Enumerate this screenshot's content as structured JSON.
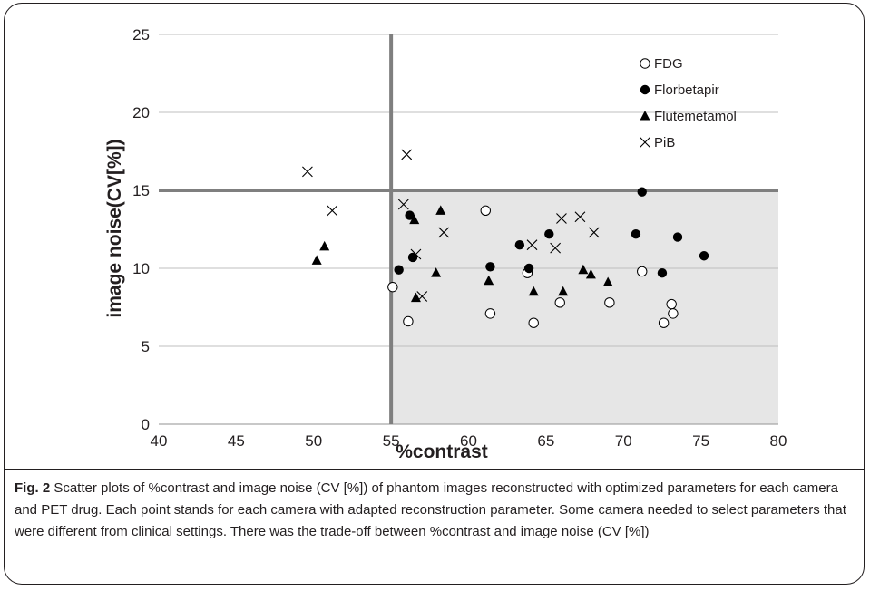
{
  "caption": {
    "label": "Fig. 2",
    "text": " Scatter plots of %contrast and image noise (CV [%]) of phantom images reconstructed with optimized parameters for each camera and PET drug. Each point stands for each camera with adapted reconstruction parameter. Some camera needed to select parameters that were different from clinical settings. There was the trade-off between %contrast and image noise (CV [%])"
  },
  "chart_data": {
    "type": "scatter",
    "xlabel": "%contrast",
    "ylabel": "image noise(CV[%])",
    "xlim": [
      40,
      80
    ],
    "ylim": [
      0,
      25
    ],
    "x_ticks": [
      40,
      45,
      50,
      55,
      60,
      65,
      70,
      75,
      80
    ],
    "y_ticks": [
      0,
      5,
      10,
      15,
      20,
      25
    ],
    "grid": "horizontal",
    "legend_position": "top-right",
    "thresholds": {
      "x": 55,
      "y": 15
    },
    "shaded_region": {
      "x": [
        55,
        80
      ],
      "y": [
        0,
        15
      ]
    },
    "colors": {
      "marker": "#000000",
      "threshold": "#7f7f7f",
      "shade": "#e6e6e6",
      "grid": "#bfbfbf"
    },
    "series": [
      {
        "name": "FDG",
        "marker": "open-circle",
        "points": [
          [
            55.1,
            8.8
          ],
          [
            56.1,
            6.6
          ],
          [
            61.1,
            13.7
          ],
          [
            61.4,
            7.1
          ],
          [
            63.8,
            9.7
          ],
          [
            64.2,
            6.5
          ],
          [
            65.9,
            7.8
          ],
          [
            69.1,
            7.8
          ],
          [
            71.2,
            9.8
          ],
          [
            72.6,
            6.5
          ],
          [
            73.1,
            7.7
          ],
          [
            73.2,
            7.1
          ]
        ]
      },
      {
        "name": "Florbetapir",
        "marker": "filled-circle",
        "points": [
          [
            55.5,
            9.9
          ],
          [
            56.2,
            13.4
          ],
          [
            56.4,
            10.7
          ],
          [
            61.4,
            10.1
          ],
          [
            63.3,
            11.5
          ],
          [
            63.9,
            10.0
          ],
          [
            65.2,
            12.2
          ],
          [
            70.8,
            12.2
          ],
          [
            71.2,
            14.9
          ],
          [
            72.5,
            9.7
          ],
          [
            73.5,
            12.0
          ],
          [
            75.2,
            10.8
          ]
        ]
      },
      {
        "name": "Flutemetamol",
        "marker": "filled-triangle",
        "points": [
          [
            50.2,
            10.5
          ],
          [
            50.7,
            11.4
          ],
          [
            56.5,
            13.1
          ],
          [
            56.6,
            8.1
          ],
          [
            57.9,
            9.7
          ],
          [
            58.2,
            13.7
          ],
          [
            61.3,
            9.2
          ],
          [
            64.2,
            8.5
          ],
          [
            66.1,
            8.5
          ],
          [
            67.4,
            9.9
          ],
          [
            67.9,
            9.6
          ],
          [
            69.0,
            9.1
          ]
        ]
      },
      {
        "name": "PiB",
        "marker": "cross",
        "points": [
          [
            49.6,
            16.2
          ],
          [
            51.2,
            13.7
          ],
          [
            55.8,
            14.1
          ],
          [
            56.0,
            17.3
          ],
          [
            56.6,
            10.9
          ],
          [
            57.0,
            8.2
          ],
          [
            58.4,
            12.3
          ],
          [
            64.1,
            11.5
          ],
          [
            65.6,
            11.3
          ],
          [
            66.0,
            13.2
          ],
          [
            67.2,
            13.3
          ],
          [
            68.1,
            12.3
          ]
        ]
      }
    ]
  }
}
